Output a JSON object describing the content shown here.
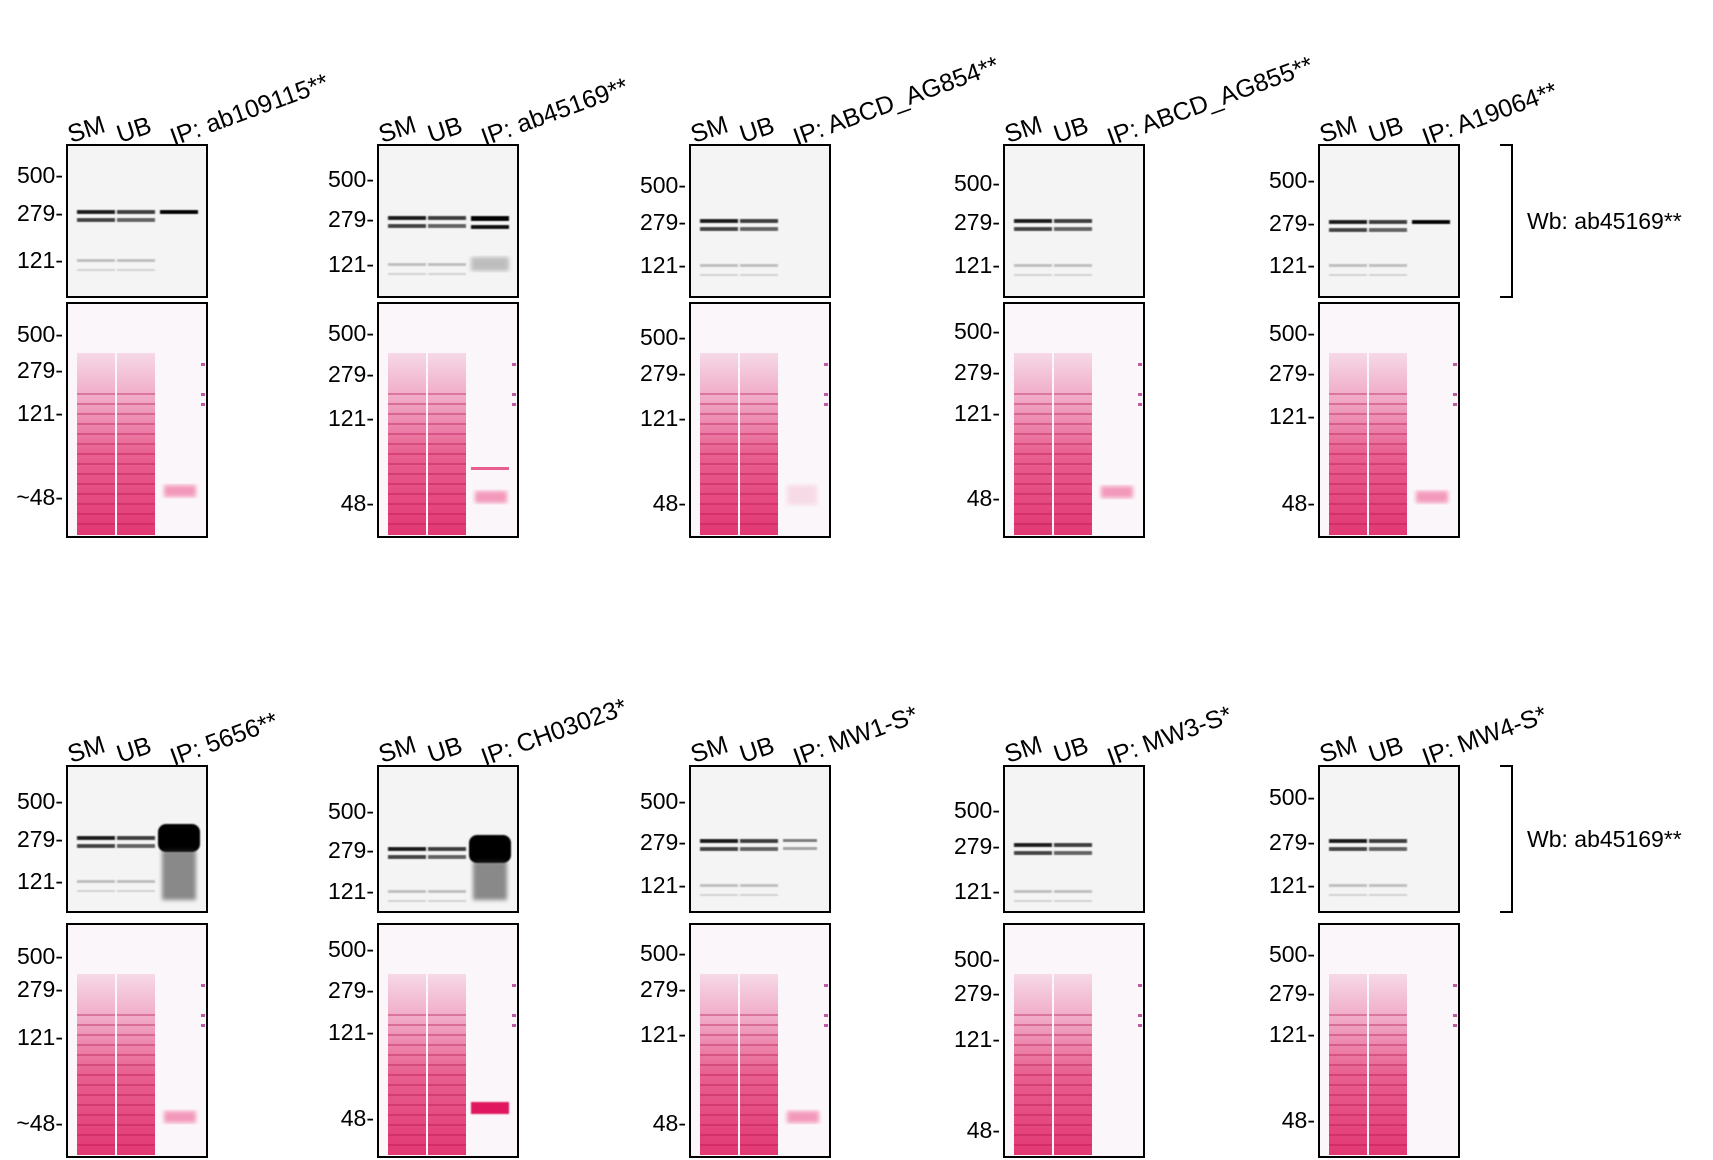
{
  "lane_labels": [
    "SM",
    "UB"
  ],
  "wb_label": "Wb: ab45169**",
  "rows": [
    {
      "panels": [
        {
          "ip": "IP: ab109115**",
          "wb_markers": [
            "500-",
            "279-",
            "121-"
          ],
          "ponceau_markers": [
            "500-",
            "279-",
            "121-",
            "~48-"
          ],
          "ip_lane_signal": "single-band",
          "ip_lane_ponceau": "heavy-chain"
        },
        {
          "ip": "IP: ab45169**",
          "wb_markers": [
            "500-",
            "279-",
            "121-"
          ],
          "ponceau_markers": [
            "500-",
            "279-",
            "121-",
            "48-"
          ],
          "ip_lane_signal": "doublet",
          "ip_lane_ponceau": "heavy-chain-plus"
        },
        {
          "ip": "IP: ABCD_AG854**",
          "wb_markers": [
            "500-",
            "279-",
            "121-"
          ],
          "ponceau_markers": [
            "500-",
            "279-",
            "121-",
            "48-"
          ],
          "ip_lane_signal": "none",
          "ip_lane_ponceau": "faint"
        },
        {
          "ip": "IP: ABCD_AG855**",
          "wb_markers": [
            "500-",
            "279-",
            "121-"
          ],
          "ponceau_markers": [
            "500-",
            "279-",
            "121-",
            "48-"
          ],
          "ip_lane_signal": "none",
          "ip_lane_ponceau": "heavy-chain"
        },
        {
          "ip": "IP: A19064**",
          "wb_markers": [
            "500-",
            "279-",
            "121-"
          ],
          "ponceau_markers": [
            "500-",
            "279-",
            "121-",
            "48-"
          ],
          "ip_lane_signal": "single-band",
          "ip_lane_ponceau": "heavy-chain"
        }
      ]
    },
    {
      "panels": [
        {
          "ip": "IP: 5656**",
          "wb_markers": [
            "500-",
            "279-",
            "121-"
          ],
          "ponceau_markers": [
            "500-",
            "279-",
            "121-",
            "~48-"
          ],
          "ip_lane_signal": "strong-smear",
          "ip_lane_ponceau": "heavy-chain"
        },
        {
          "ip": "IP: CH03023*",
          "wb_markers": [
            "500-",
            "279-",
            "121-"
          ],
          "ponceau_markers": [
            "500-",
            "279-",
            "121-",
            "48-"
          ],
          "ip_lane_signal": "strong-smear",
          "ip_lane_ponceau": "strong-heavy-chain"
        },
        {
          "ip": "IP: MW1-S*",
          "wb_markers": [
            "500-",
            "279-",
            "121-"
          ],
          "ponceau_markers": [
            "500-",
            "279-",
            "121-",
            "48-"
          ],
          "ip_lane_signal": "faint-doublet",
          "ip_lane_ponceau": "heavy-chain"
        },
        {
          "ip": "IP: MW3-S*",
          "wb_markers": [
            "500-",
            "279-",
            "121-"
          ],
          "ponceau_markers": [
            "500-",
            "279-",
            "121-",
            "48-"
          ],
          "ip_lane_signal": "none",
          "ip_lane_ponceau": "none"
        },
        {
          "ip": "IP: MW4-S*",
          "wb_markers": [
            "500-",
            "279-",
            "121-"
          ],
          "ponceau_markers": [
            "500-",
            "279-",
            "121-",
            "48-"
          ],
          "ip_lane_signal": "none",
          "ip_lane_ponceau": "none"
        }
      ]
    }
  ]
}
